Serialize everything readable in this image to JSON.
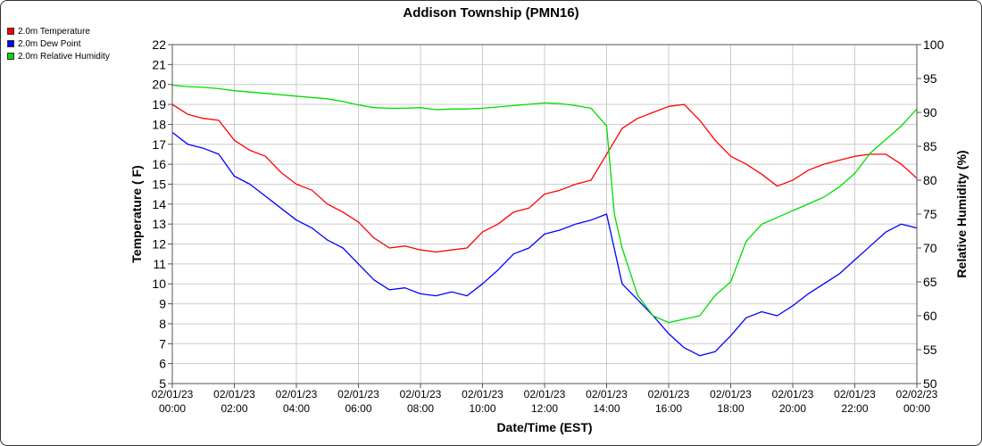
{
  "chart_data": {
    "type": "line",
    "title": "Addison Township (PMN16)",
    "xlabel": "Date/Time (EST)",
    "ylabel_left": "Temperature ( F)",
    "ylabel_right": "Relative Humidity (%)",
    "ylim_left": [
      5,
      22
    ],
    "ylim_right": [
      50,
      100
    ],
    "xlim_hours": [
      0,
      24
    ],
    "grid": true,
    "legend_placement": "top-left",
    "x_ticks": [
      {
        "date": "02/01/23",
        "time": "00:00"
      },
      {
        "date": "02/01/23",
        "time": "02:00"
      },
      {
        "date": "02/01/23",
        "time": "04:00"
      },
      {
        "date": "02/01/23",
        "time": "06:00"
      },
      {
        "date": "02/01/23",
        "time": "08:00"
      },
      {
        "date": "02/01/23",
        "time": "10:00"
      },
      {
        "date": "02/01/23",
        "time": "12:00"
      },
      {
        "date": "02/01/23",
        "time": "14:00"
      },
      {
        "date": "02/01/23",
        "time": "16:00"
      },
      {
        "date": "02/01/23",
        "time": "18:00"
      },
      {
        "date": "02/01/23",
        "time": "20:00"
      },
      {
        "date": "02/01/23",
        "time": "22:00"
      },
      {
        "date": "02/02/23",
        "time": "00:00"
      }
    ],
    "y_ticks_left": [
      5,
      6,
      7,
      8,
      9,
      10,
      11,
      12,
      13,
      14,
      15,
      16,
      17,
      18,
      19,
      20,
      21,
      22
    ],
    "y_ticks_right": [
      50,
      55,
      60,
      65,
      70,
      75,
      80,
      85,
      90,
      95,
      100
    ],
    "series": [
      {
        "name": "2.0m Temperature",
        "color": "#ff0000",
        "axis": "left",
        "x": [
          0,
          0.5,
          1,
          1.5,
          2,
          2.5,
          3,
          3.5,
          4,
          4.5,
          5,
          5.5,
          6,
          6.5,
          7,
          7.5,
          8,
          8.5,
          9,
          9.5,
          10,
          10.5,
          11,
          11.5,
          12,
          12.5,
          13,
          13.5,
          14,
          14.5,
          15,
          15.5,
          16,
          16.5,
          17,
          17.5,
          18,
          18.5,
          19,
          19.5,
          20,
          20.5,
          21,
          21.5,
          22,
          22.5,
          23,
          23.5,
          24
        ],
        "values": [
          19.0,
          18.5,
          18.3,
          18.2,
          17.2,
          16.7,
          16.4,
          15.6,
          15.0,
          14.7,
          14.0,
          13.6,
          13.1,
          12.3,
          11.8,
          11.9,
          11.7,
          11.6,
          11.7,
          11.8,
          12.6,
          13.0,
          13.6,
          13.8,
          14.5,
          14.7,
          15.0,
          15.2,
          16.5,
          17.8,
          18.3,
          18.6,
          18.9,
          19.0,
          18.2,
          17.2,
          16.4,
          16.0,
          15.5,
          14.9,
          15.2,
          15.7,
          16.0,
          16.2,
          16.4,
          16.5,
          16.5,
          16.0,
          15.3
        ]
      },
      {
        "name": "2.0m Dew Point",
        "color": "#0000ff",
        "axis": "left",
        "x": [
          0,
          0.5,
          1,
          1.5,
          2,
          2.5,
          3,
          3.5,
          4,
          4.5,
          5,
          5.5,
          6,
          6.5,
          7,
          7.5,
          8,
          8.5,
          9,
          9.5,
          10,
          10.5,
          11,
          11.5,
          12,
          12.5,
          13,
          13.5,
          14,
          14.5,
          15,
          15.5,
          16,
          16.5,
          17,
          17.5,
          18,
          18.5,
          19,
          19.5,
          20,
          20.5,
          21,
          21.5,
          22,
          22.5,
          23,
          23.5,
          24
        ],
        "values": [
          17.6,
          17.0,
          16.8,
          16.5,
          15.4,
          15.0,
          14.4,
          13.8,
          13.2,
          12.8,
          12.2,
          11.8,
          11.0,
          10.2,
          9.7,
          9.8,
          9.5,
          9.4,
          9.6,
          9.4,
          10.0,
          10.7,
          11.5,
          11.8,
          12.5,
          12.7,
          13.0,
          13.2,
          13.5,
          10.0,
          9.2,
          8.4,
          7.5,
          6.8,
          6.4,
          6.6,
          7.4,
          8.3,
          8.6,
          8.4,
          8.9,
          9.5,
          10.0,
          10.5,
          11.2,
          11.9,
          12.6,
          13.0,
          12.8
        ]
      },
      {
        "name": "2.0m Relative Humidity",
        "color": "#00dd00",
        "axis": "right",
        "x": [
          0,
          0.5,
          1,
          1.5,
          2,
          2.5,
          3,
          3.5,
          4,
          4.5,
          5,
          5.5,
          6,
          6.5,
          7,
          7.5,
          8,
          8.5,
          9,
          9.5,
          10,
          10.5,
          11,
          11.5,
          12,
          12.5,
          13,
          13.5,
          14,
          14.25,
          14.5,
          15,
          15.5,
          16,
          16.5,
          17,
          17.5,
          18,
          18.5,
          19,
          19.5,
          20,
          20.5,
          21,
          21.5,
          22,
          22.5,
          23,
          23.5,
          24
        ],
        "values": [
          94.0,
          93.8,
          93.7,
          93.5,
          93.2,
          93.0,
          92.8,
          92.6,
          92.4,
          92.2,
          92.0,
          91.6,
          91.1,
          90.7,
          90.6,
          90.6,
          90.7,
          90.4,
          90.5,
          90.5,
          90.6,
          90.8,
          91.0,
          91.2,
          91.4,
          91.3,
          91.0,
          90.6,
          88.0,
          75.0,
          70.0,
          63.0,
          60.0,
          59.0,
          59.5,
          60.0,
          63.0,
          65.0,
          71.0,
          73.5,
          74.5,
          75.5,
          76.5,
          77.5,
          79.0,
          81.0,
          84.0,
          86.0,
          88.0,
          90.5
        ]
      }
    ]
  }
}
